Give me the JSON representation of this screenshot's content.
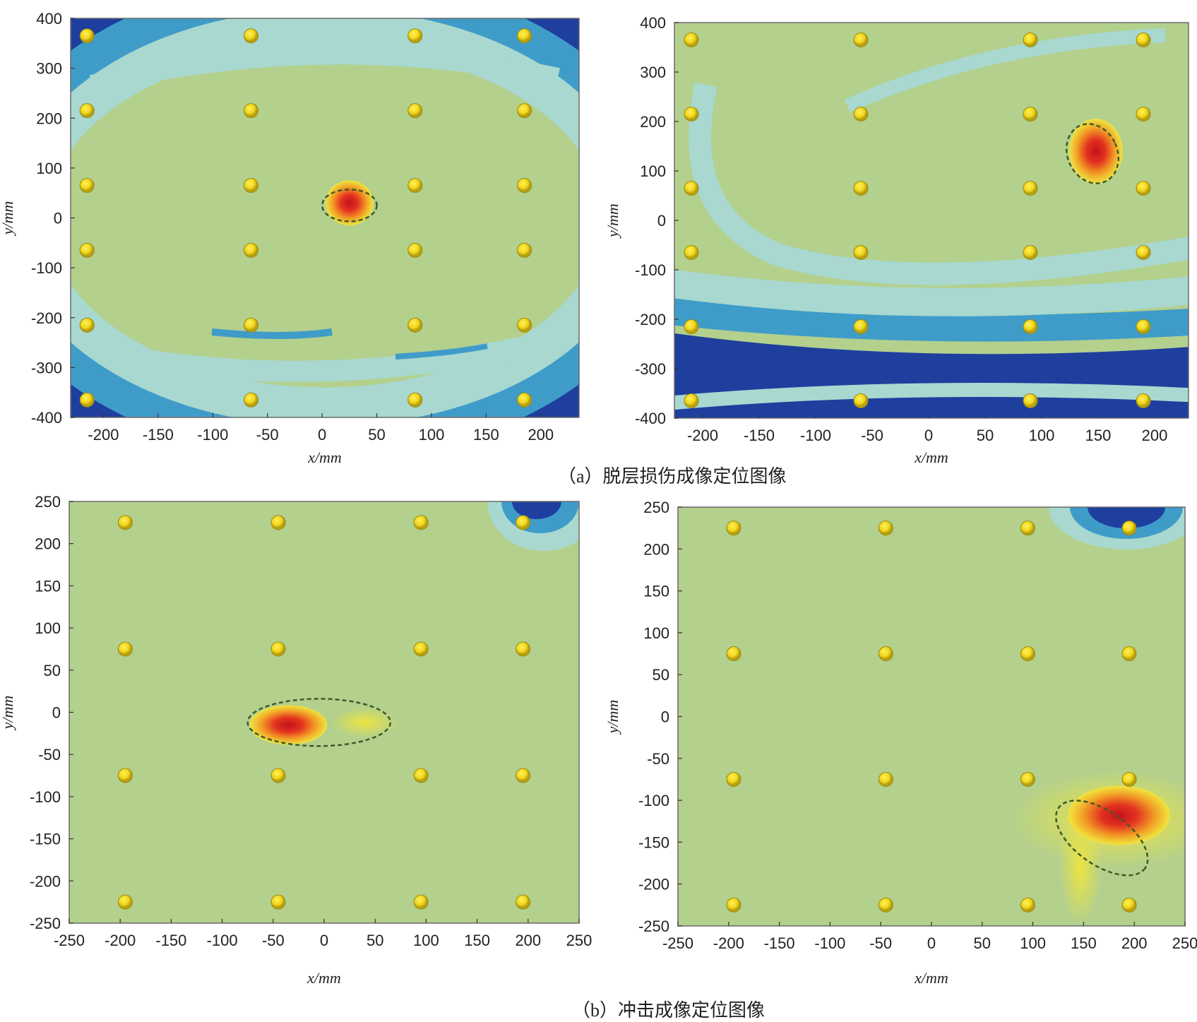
{
  "captions": {
    "a": "（a）脱层损伤成像定位图像",
    "b": "（b）冲击成像定位图像"
  },
  "colors": {
    "background_field": "#b3d08d",
    "light_cyan": "#a8d8d0",
    "mid_blue": "#3f9cc9",
    "dark_blue": "#1e3f9e",
    "hot_red": "#d6221f",
    "hot_yellow": "#f3e63a",
    "sensor": "#f4dd20",
    "ellipse": "#3f5a2a"
  },
  "chart_data": [
    {
      "id": "a-left",
      "type": "heatmap",
      "title": "",
      "xlabel": "x/mm",
      "ylabel": "y/mm",
      "xlim": [
        -230,
        235
      ],
      "ylim": [
        -400,
        400
      ],
      "xticks": [
        -200,
        -150,
        -100,
        -50,
        0,
        50,
        100,
        150,
        200
      ],
      "yticks": [
        400,
        300,
        200,
        100,
        0,
        -100,
        -200,
        -300,
        -400
      ],
      "grid": false,
      "legend": "none",
      "sensors": {
        "x": [
          -215,
          -65,
          85,
          185
        ],
        "y": [
          365,
          215,
          65,
          -65,
          -215,
          -365
        ]
      },
      "hotspot": {
        "x": 25,
        "y": 30
      },
      "dashed_ellipse": {
        "cx": 25,
        "cy": 25,
        "rx": 25,
        "ry": 32,
        "angle": 0
      },
      "bands": "blue border bands at top and bottom, light cyan arcs"
    },
    {
      "id": "a-right",
      "type": "heatmap",
      "title": "",
      "xlabel": "x/mm",
      "ylabel": "y/mm",
      "xlim": [
        -225,
        230
      ],
      "ylim": [
        -400,
        400
      ],
      "xticks": [
        -200,
        -150,
        -100,
        -50,
        0,
        50,
        100,
        150,
        200
      ],
      "yticks": [
        400,
        300,
        200,
        100,
        0,
        -100,
        -200,
        -300,
        -400
      ],
      "grid": false,
      "legend": "none",
      "sensors": {
        "x": [
          -210,
          -60,
          90,
          190
        ],
        "y": [
          365,
          215,
          65,
          -65,
          -215,
          -365
        ]
      },
      "hotspot": {
        "x": 148,
        "y": 140
      },
      "dashed_ellipse": {
        "cx": 145,
        "cy": 135,
        "rx": 22,
        "ry": 62,
        "angle": 25
      },
      "bands": "dark blue bands at bottom, cyan diagonal band"
    },
    {
      "id": "b-left",
      "type": "heatmap",
      "title": "",
      "xlabel": "x/mm",
      "ylabel": "y/mm",
      "xlim": [
        -250,
        250
      ],
      "ylim": [
        -250,
        250
      ],
      "xticks": [
        -250,
        -200,
        -150,
        -100,
        -50,
        0,
        50,
        100,
        150,
        200,
        250
      ],
      "yticks": [
        250,
        200,
        150,
        100,
        50,
        0,
        -50,
        -100,
        -150,
        -200,
        -250
      ],
      "grid": false,
      "legend": "none",
      "sensors": {
        "x": [
          -195,
          -45,
          95,
          195
        ],
        "y": [
          225,
          75,
          -75,
          -225
        ]
      },
      "hotspot": {
        "x": -35,
        "y": -15
      },
      "secondary_hotspot": {
        "x": 40,
        "y": -12
      },
      "dashed_ellipse": {
        "cx": -5,
        "cy": -12,
        "rx": 70,
        "ry": 28,
        "angle": 0
      },
      "bands": "dark blue patch at top-right corner"
    },
    {
      "id": "b-right",
      "type": "heatmap",
      "title": "",
      "xlabel": "x/mm",
      "ylabel": "y/mm",
      "xlim": [
        -250,
        250
      ],
      "ylim": [
        -250,
        250
      ],
      "xticks": [
        -250,
        -200,
        -150,
        -100,
        -50,
        0,
        50,
        100,
        150,
        200,
        250
      ],
      "yticks": [
        250,
        200,
        150,
        100,
        50,
        0,
        -50,
        -100,
        -150,
        -200,
        -250
      ],
      "grid": false,
      "legend": "none",
      "sensors": {
        "x": [
          -195,
          -45,
          95,
          195
        ],
        "y": [
          225,
          75,
          -75,
          -225
        ]
      },
      "hotspot": {
        "x": 185,
        "y": -118
      },
      "dashed_ellipse": {
        "cx": 168,
        "cy": -145,
        "rx": 52,
        "ry": 32,
        "angle": -35
      },
      "bands": "dark blue patch at top-right, yellow plume below"
    }
  ]
}
